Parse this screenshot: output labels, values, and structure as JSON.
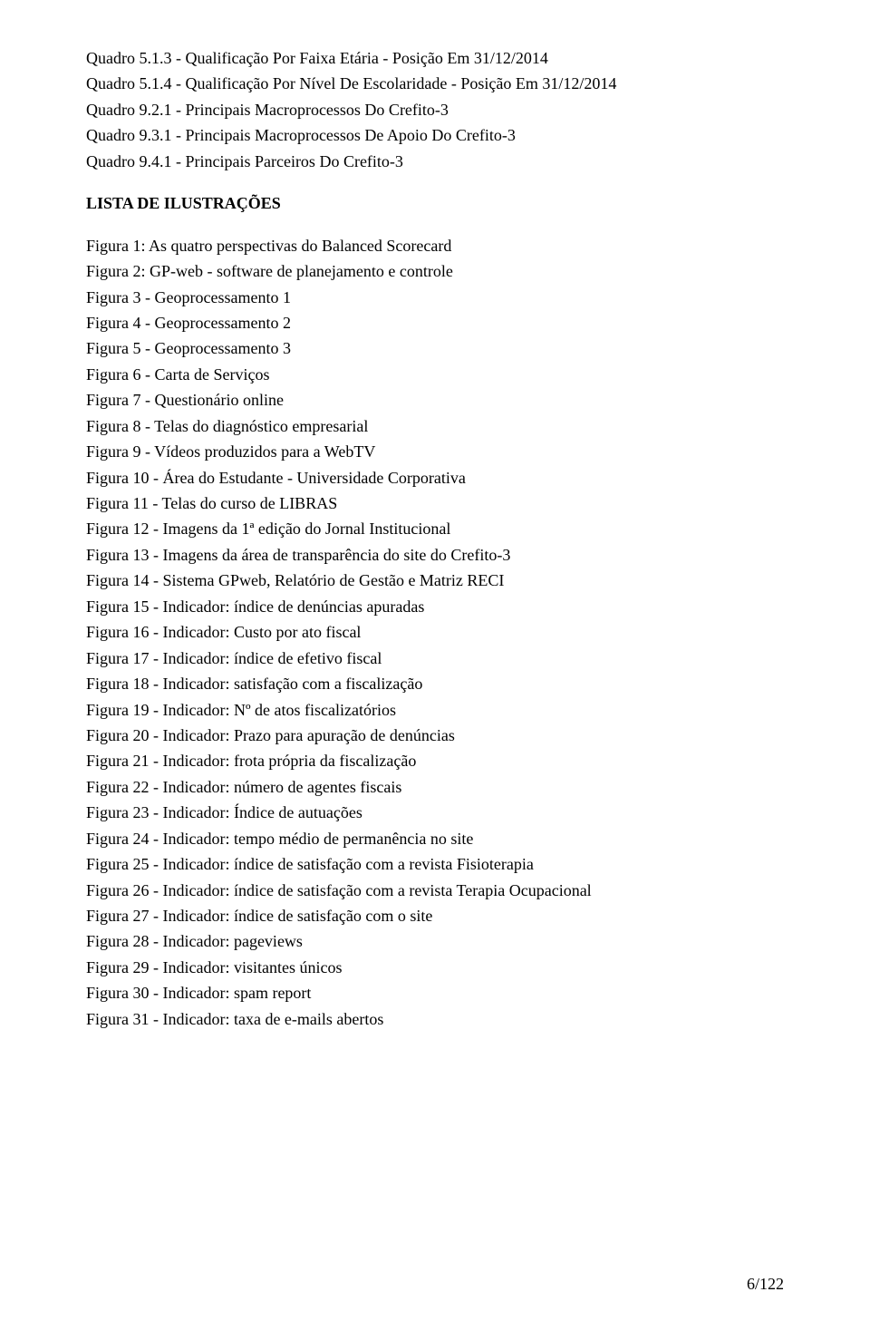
{
  "page": {
    "background_color": "#ffffff",
    "text_color": "#000000",
    "font_family": "Times New Roman",
    "font_size_pt": 12,
    "page_number": "6/122"
  },
  "quadros": [
    "Quadro 5.1.3 - Qualificação Por Faixa Etária - Posição Em 31/12/2014",
    "Quadro 5.1.4 - Qualificação Por Nível De Escolaridade - Posição Em 31/12/2014",
    "Quadro 9.2.1 - Principais Macroprocessos Do Crefito-3",
    "Quadro 9.3.1 - Principais Macroprocessos De Apoio Do Crefito-3",
    "Quadro 9.4.1 - Principais Parceiros Do Crefito-3"
  ],
  "section_title": "LISTA DE ILUSTRAÇÕES",
  "figuras": [
    "Figura 1: As quatro perspectivas do Balanced Scorecard",
    "Figura 2: GP-web - software de planejamento e controle",
    "Figura 3 - Geoprocessamento 1",
    "Figura 4 - Geoprocessamento 2",
    "Figura 5 - Geoprocessamento 3",
    "Figura 6 - Carta de Serviços",
    "Figura 7 - Questionário online",
    "Figura 8 - Telas do diagnóstico empresarial",
    "Figura 9 - Vídeos produzidos para a WebTV",
    "Figura 10 - Área do Estudante - Universidade Corporativa",
    "Figura 11 - Telas do curso de LIBRAS",
    "Figura 12 - Imagens da 1ª edição do Jornal Institucional",
    "Figura 13 - Imagens da área de transparência do site do Crefito-3",
    "Figura 14 - Sistema GPweb, Relatório de Gestão e Matriz RECI",
    "Figura 15 - Indicador: índice de denúncias apuradas",
    "Figura 16 - Indicador: Custo por ato fiscal",
    "Figura 17 - Indicador: índice de efetivo fiscal",
    "Figura 18 - Indicador: satisfação com a fiscalização",
    "Figura 19 - Indicador: Nº de atos fiscalizatórios",
    "Figura 20 - Indicador: Prazo para apuração de denúncias",
    "Figura 21 - Indicador: frota própria da fiscalização",
    "Figura 22 - Indicador: número de agentes fiscais",
    "Figura 23 - Indicador: Índice de autuações",
    "Figura 24 - Indicador: tempo médio de permanência no site",
    "Figura 25 - Indicador: índice de satisfação com a revista Fisioterapia",
    "Figura 26 - Indicador: índice de satisfação com a revista Terapia Ocupacional",
    "Figura 27 - Indicador: índice de satisfação com o site",
    "Figura 28 - Indicador: pageviews",
    "Figura 29 - Indicador: visitantes únicos",
    "Figura 30 - Indicador: spam report",
    "Figura 31 - Indicador: taxa de e-mails abertos"
  ]
}
